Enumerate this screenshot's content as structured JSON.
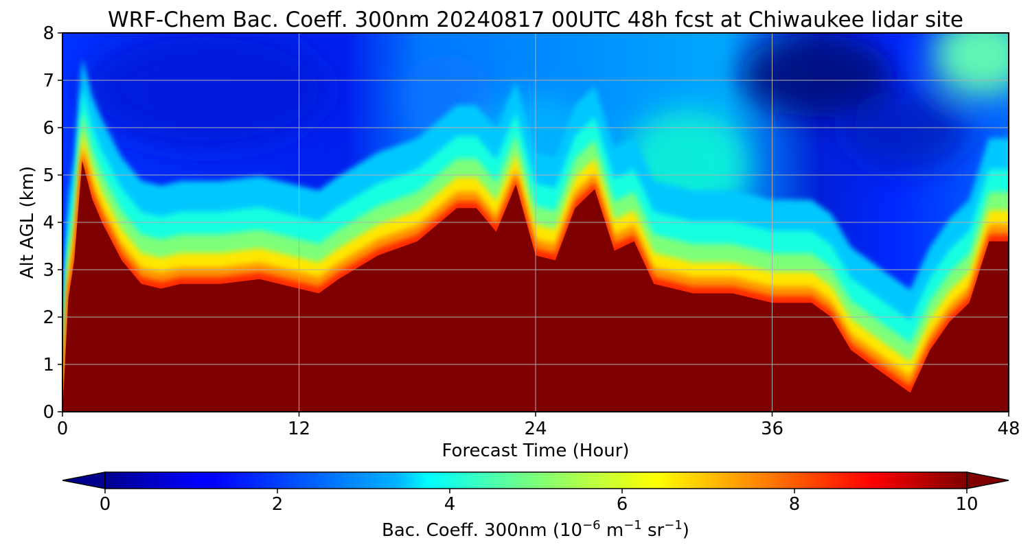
{
  "chart_data": {
    "type": "heatmap",
    "title": "WRF-Chem Bac. Coeff. 300nm  20240817 00UTC 48h fcst at Chiwaukee lidar site",
    "xlabel": "Forecast Time (Hour)",
    "ylabel": "Alt AGL (km)",
    "xlim": [
      0,
      48
    ],
    "ylim": [
      0,
      8
    ],
    "xticks": [
      0,
      12,
      24,
      36,
      48
    ],
    "xtick_labels": [
      "0",
      "12",
      "24",
      "36",
      "48"
    ],
    "yticks": [
      0,
      1,
      2,
      3,
      4,
      5,
      6,
      7,
      8
    ],
    "ytick_labels": [
      "0",
      "1",
      "2",
      "3",
      "4",
      "5",
      "6",
      "7",
      "8"
    ],
    "grid": true,
    "colormap": "jet",
    "colorbar": {
      "label_prefix": "Bac. Coeff. 300nm  (10",
      "label_exp1": "−6",
      "label_mid1": " m",
      "label_exp2": "−1",
      "label_mid2": " sr",
      "label_exp3": "−1",
      "label_suffix": ")",
      "vmin": 0,
      "vmax": 10,
      "extend": "both",
      "orientation": "horizontal",
      "ticks": [
        0,
        2,
        4,
        6,
        8,
        10
      ],
      "tick_labels": [
        "0",
        "2",
        "4",
        "6",
        "8",
        "10"
      ]
    },
    "approx_max_contour_height_km": {
      "time_h": [
        0,
        0.3,
        0.6,
        1.0,
        1.5,
        2,
        3,
        4,
        5,
        6,
        8,
        10,
        12,
        13,
        14,
        16,
        18,
        20,
        21,
        22,
        23,
        24,
        25,
        26,
        27,
        28,
        29,
        30,
        32,
        34,
        36,
        38,
        39,
        40,
        41,
        42,
        43,
        44,
        45,
        46,
        47,
        48
      ],
      "height_km": [
        0.0,
        2.4,
        3.2,
        5.3,
        4.5,
        4.0,
        3.2,
        2.7,
        2.6,
        2.7,
        2.7,
        2.8,
        2.6,
        2.5,
        2.8,
        3.3,
        3.6,
        4.3,
        4.3,
        3.8,
        4.8,
        3.3,
        3.2,
        4.3,
        4.7,
        3.4,
        3.6,
        2.7,
        2.5,
        2.5,
        2.3,
        2.3,
        2.0,
        1.3,
        1.0,
        0.7,
        0.4,
        1.3,
        1.9,
        2.3,
        3.6,
        3.6
      ]
    },
    "field_description_values": {
      "background_upper_level": 1.5,
      "boundary_layer": 10
    }
  },
  "colors": {
    "aerosol_layer": "#7f0000",
    "boundary_red": "#ff2a00",
    "boundary_orange": "#ff9400",
    "yellow": "#ffe600",
    "green": "#7dff7a",
    "cyan": "#16ffe1",
    "light_blue": "#009dff",
    "blue": "#0028ff",
    "dark_blue": "#00008f",
    "grid": "#b0b0b0"
  }
}
